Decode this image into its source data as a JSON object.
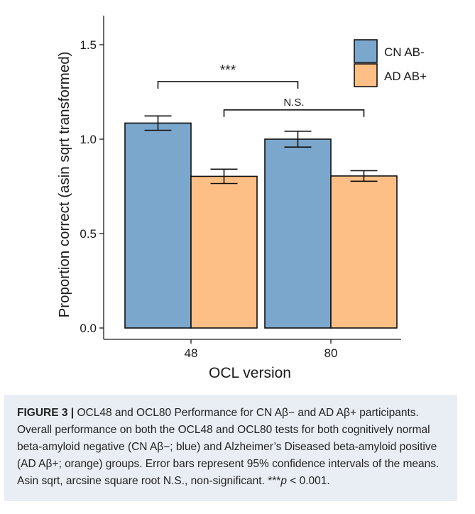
{
  "chart_data": {
    "type": "bar",
    "xlabel": "OCL version",
    "ylabel": "Proportion correct (asin sqrt transformed)",
    "categories": [
      "48",
      "80"
    ],
    "ylim": [
      0,
      1.65
    ],
    "yticks": [
      "0.0",
      "0.5",
      "1.0",
      "1.5"
    ],
    "ytick_values": [
      0.0,
      0.5,
      1.0,
      1.5
    ],
    "grid": false,
    "legend_position": "top-right",
    "series": [
      {
        "name": "CN AB-",
        "color": "#7ba7cd",
        "values": [
          1.085,
          1.0
        ],
        "ci_low": [
          1.047,
          0.958
        ],
        "ci_high": [
          1.123,
          1.042
        ]
      },
      {
        "name": "AD AB+",
        "color": "#fdbf85",
        "values": [
          0.803,
          0.805
        ],
        "ci_low": [
          0.765,
          0.777
        ],
        "ci_high": [
          0.841,
          0.833
        ]
      }
    ],
    "annotations": [
      {
        "text": "***",
        "from": "48 CN AB-",
        "to": "80 CN AB-",
        "y": 1.305
      },
      {
        "text": "N.S.",
        "from": "48 AD AB+",
        "to": "80 AD AB+",
        "y": 1.155
      }
    ]
  },
  "caption": {
    "label": "FIGURE 3 |",
    "text": " OCL48 and OCL80 Performance for CN Aβ− and AD Aβ+ participants. Overall performance on both the OCL48 and OCL80 tests for both cognitively normal beta-amyloid negative (CN Aβ−; blue) and Alzheimer’s Diseased beta-amyloid positive (AD Aβ+; orange) groups. Error bars represent 95% confidence intervals of the means. Asin sqrt, arcsine square root N.S., non-significant. ***",
    "p_symbol": "p",
    "p_text": " < 0.001."
  }
}
